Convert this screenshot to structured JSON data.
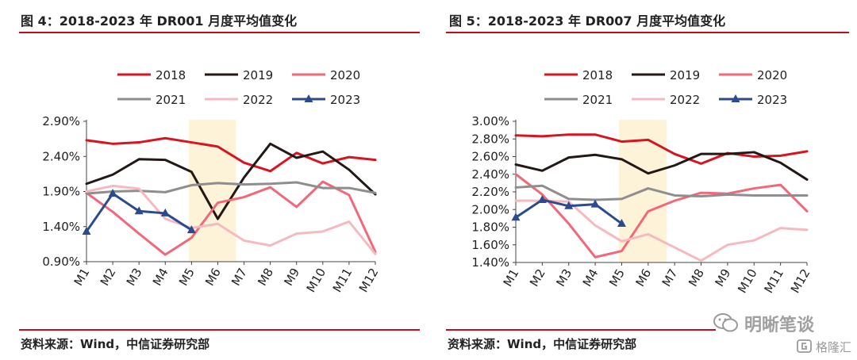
{
  "chart_data": [
    {
      "type": "line",
      "title": "图 4：2018-2023 年 DR001 月度平均值变化",
      "categories": [
        "M1",
        "M2",
        "M3",
        "M4",
        "M5",
        "M6",
        "M7",
        "M8",
        "M9",
        "M10",
        "M11",
        "M12"
      ],
      "ylim": [
        0.9,
        2.9
      ],
      "yticks": [
        "0.90%",
        "1.40%",
        "1.90%",
        "2.40%",
        "2.90%"
      ],
      "ytick_values": [
        0.9,
        1.4,
        1.9,
        2.4,
        2.9
      ],
      "highlight": [
        "M5",
        "M6"
      ],
      "series": [
        {
          "name": "2018",
          "color": "#d7141f",
          "width": 3,
          "values": [
            2.63,
            2.58,
            2.6,
            2.66,
            2.6,
            2.54,
            2.31,
            2.19,
            2.45,
            2.3,
            2.39,
            2.35
          ]
        },
        {
          "name": "2019",
          "color": "#231815",
          "width": 3,
          "values": [
            2.01,
            2.14,
            2.36,
            2.35,
            2.18,
            1.51,
            2.1,
            2.58,
            2.38,
            2.47,
            2.21,
            1.86
          ]
        },
        {
          "name": "2020",
          "color": "#f0687a",
          "width": 3,
          "values": [
            1.88,
            1.61,
            1.3,
            1.0,
            1.24,
            1.74,
            1.82,
            1.96,
            1.68,
            2.04,
            1.85,
            1.04
          ]
        },
        {
          "name": "2021",
          "color": "#8e8e8e",
          "width": 3,
          "values": [
            1.87,
            1.9,
            1.91,
            1.89,
            1.99,
            2.02,
            2.0,
            2.01,
            2.03,
            1.95,
            1.95,
            1.88
          ]
        },
        {
          "name": "2022",
          "color": "#f7b9c0",
          "width": 3,
          "values": [
            1.9,
            1.98,
            1.94,
            1.51,
            1.38,
            1.44,
            1.2,
            1.13,
            1.3,
            1.33,
            1.47,
            1.01
          ]
        },
        {
          "name": "2023",
          "color": "#2b4a8f",
          "width": 3,
          "marker": "triangle",
          "values": [
            1.33,
            1.87,
            1.62,
            1.59,
            1.35,
            null,
            null,
            null,
            null,
            null,
            null,
            null
          ]
        }
      ],
      "source": "资料来源：Wind，中信证券研究部"
    },
    {
      "type": "line",
      "title": "图 5：2018-2023 年 DR007 月度平均值变化",
      "categories": [
        "M1",
        "M2",
        "M3",
        "M4",
        "M5",
        "M6",
        "M7",
        "M8",
        "M9",
        "M10",
        "M11",
        "M12"
      ],
      "ylim": [
        1.4,
        3.0
      ],
      "yticks": [
        "1.40%",
        "1.60%",
        "1.80%",
        "2.00%",
        "2.20%",
        "2.40%",
        "2.60%",
        "2.80%",
        "3.00%"
      ],
      "ytick_values": [
        1.4,
        1.6,
        1.8,
        2.0,
        2.2,
        2.4,
        2.6,
        2.8,
        3.0
      ],
      "highlight": [
        "M5",
        "M6"
      ],
      "series": [
        {
          "name": "2018",
          "color": "#d7141f",
          "width": 3,
          "values": [
            2.84,
            2.83,
            2.85,
            2.85,
            2.77,
            2.79,
            2.63,
            2.52,
            2.64,
            2.6,
            2.61,
            2.66
          ]
        },
        {
          "name": "2019",
          "color": "#231815",
          "width": 3,
          "values": [
            2.51,
            2.44,
            2.59,
            2.62,
            2.57,
            2.41,
            2.5,
            2.63,
            2.63,
            2.65,
            2.53,
            2.34
          ]
        },
        {
          "name": "2020",
          "color": "#f0687a",
          "width": 3,
          "values": [
            2.4,
            2.17,
            1.84,
            1.46,
            1.53,
            1.98,
            2.1,
            2.19,
            2.18,
            2.24,
            2.28,
            1.98
          ]
        },
        {
          "name": "2021",
          "color": "#8e8e8e",
          "width": 3,
          "values": [
            2.25,
            2.27,
            2.12,
            2.11,
            2.12,
            2.24,
            2.16,
            2.15,
            2.17,
            2.16,
            2.16,
            2.16
          ]
        },
        {
          "name": "2022",
          "color": "#f7b9c0",
          "width": 3,
          "values": [
            2.1,
            2.1,
            2.09,
            1.82,
            1.64,
            1.72,
            1.57,
            1.42,
            1.6,
            1.65,
            1.79,
            1.77
          ]
        },
        {
          "name": "2023",
          "color": "#2b4a8f",
          "width": 3,
          "marker": "triangle",
          "values": [
            1.91,
            2.11,
            2.04,
            2.06,
            1.84,
            null,
            null,
            null,
            null,
            null,
            null,
            null
          ]
        }
      ],
      "source": "资料来源：Wind，中信证券研究部"
    }
  ],
  "watermark": {
    "brand": "明晰笔谈",
    "brand_icon": "wechat-icon",
    "platform": "格隆汇",
    "platform_icon": "gelonghui-logo-icon"
  }
}
